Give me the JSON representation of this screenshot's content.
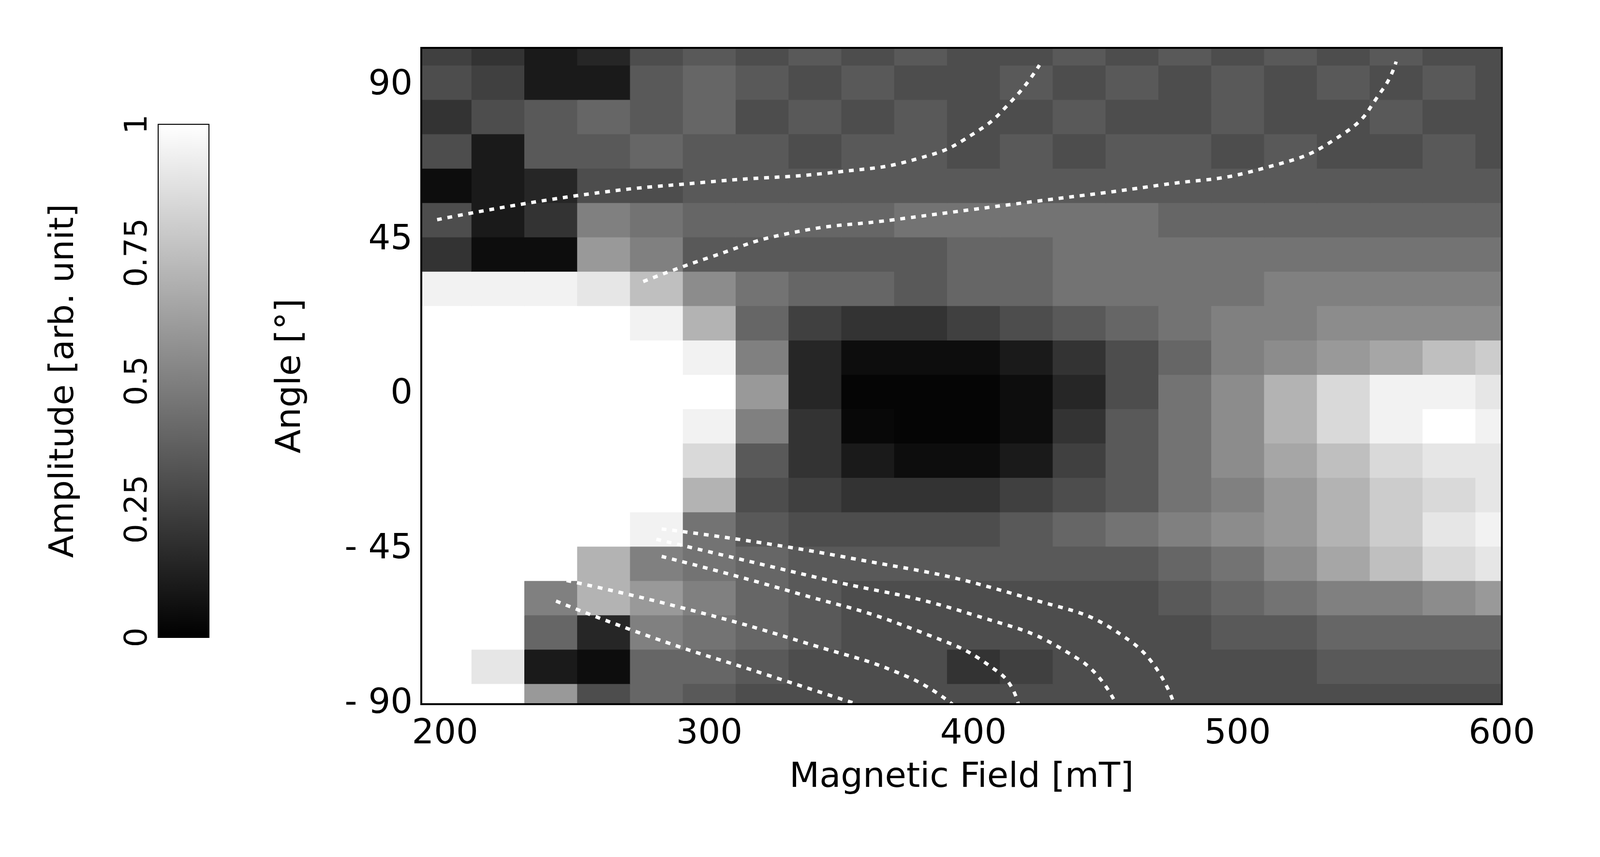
{
  "chart_data": {
    "type": "heatmap",
    "x_label": "Magnetic Field [mT]",
    "y_label": "Angle [°]",
    "xlim": [
      191,
      600
    ],
    "ylim": [
      -91,
      100
    ],
    "xticks": [
      200,
      300,
      400,
      500,
      600
    ],
    "yticks": [
      {
        "value": -90,
        "label": "- 90"
      },
      {
        "value": -45,
        "label": "- 45"
      },
      0,
      45,
      90
    ],
    "grid": false,
    "x": [
      200,
      220,
      240,
      260,
      280,
      300,
      320,
      340,
      360,
      380,
      400,
      420,
      440,
      460,
      480,
      500,
      520,
      540,
      560,
      580,
      600
    ],
    "y": [
      -90,
      -80,
      -70,
      -60,
      -50,
      -40,
      -30,
      -20,
      -10,
      0,
      10,
      20,
      30,
      40,
      50,
      60,
      70,
      80,
      90,
      100
    ],
    "cells": [
      [
        1,
        1,
        0.6,
        0.3,
        0.4,
        0.35,
        0.3,
        0.3,
        0.3,
        0.3,
        0.3,
        0.3,
        0.3,
        0.3,
        0.3,
        0.3,
        0.3,
        0.3,
        0.3,
        0.3,
        0.3
      ],
      [
        1,
        0.9,
        0.1,
        0.05,
        0.4,
        0.4,
        0.35,
        0.3,
        0.3,
        0.3,
        0.2,
        0.25,
        0.3,
        0.3,
        0.3,
        0.3,
        0.3,
        0.35,
        0.35,
        0.35,
        0.35
      ],
      [
        1,
        1,
        0.4,
        0.15,
        0.5,
        0.45,
        0.4,
        0.35,
        0.3,
        0.3,
        0.3,
        0.3,
        0.3,
        0.3,
        0.3,
        0.35,
        0.35,
        0.4,
        0.4,
        0.4,
        0.4
      ],
      [
        1,
        1,
        0.5,
        0.7,
        0.6,
        0.5,
        0.4,
        0.35,
        0.3,
        0.3,
        0.3,
        0.3,
        0.3,
        0.3,
        0.35,
        0.4,
        0.45,
        0.5,
        0.5,
        0.55,
        0.6
      ],
      [
        1,
        1,
        1,
        0.7,
        0.5,
        0.45,
        0.4,
        0.35,
        0.35,
        0.35,
        0.35,
        0.35,
        0.35,
        0.35,
        0.4,
        0.45,
        0.55,
        0.65,
        0.75,
        0.85,
        0.9
      ],
      [
        1,
        1,
        1,
        1,
        0.95,
        0.45,
        0.35,
        0.3,
        0.3,
        0.3,
        0.3,
        0.35,
        0.4,
        0.45,
        0.5,
        0.55,
        0.6,
        0.7,
        0.8,
        0.9,
        0.95
      ],
      [
        1,
        1,
        1,
        1,
        1,
        0.7,
        0.3,
        0.25,
        0.2,
        0.2,
        0.2,
        0.25,
        0.3,
        0.35,
        0.45,
        0.5,
        0.6,
        0.7,
        0.8,
        0.85,
        0.9
      ],
      [
        1,
        1,
        1,
        1,
        1,
        0.85,
        0.35,
        0.2,
        0.1,
        0.05,
        0.05,
        0.1,
        0.25,
        0.35,
        0.45,
        0.55,
        0.65,
        0.75,
        0.85,
        0.9,
        0.9
      ],
      [
        1,
        1,
        1,
        1,
        1,
        0.95,
        0.5,
        0.2,
        0.03,
        0.02,
        0.02,
        0.05,
        0.2,
        0.35,
        0.45,
        0.55,
        0.7,
        0.85,
        0.95,
        1,
        0.95
      ],
      [
        1,
        1,
        1,
        1,
        1,
        1,
        0.6,
        0.15,
        0.02,
        0.02,
        0.02,
        0.05,
        0.15,
        0.3,
        0.45,
        0.55,
        0.7,
        0.85,
        0.95,
        0.95,
        0.9
      ],
      [
        1,
        1,
        1,
        1,
        1,
        0.95,
        0.5,
        0.15,
        0.05,
        0.05,
        0.05,
        0.1,
        0.2,
        0.3,
        0.4,
        0.5,
        0.55,
        0.6,
        0.65,
        0.75,
        0.8
      ],
      [
        1,
        1,
        1,
        1,
        0.95,
        0.7,
        0.4,
        0.25,
        0.2,
        0.2,
        0.25,
        0.3,
        0.35,
        0.4,
        0.45,
        0.5,
        0.5,
        0.55,
        0.55,
        0.55,
        0.55
      ],
      [
        0.95,
        0.95,
        0.95,
        0.9,
        0.75,
        0.55,
        0.45,
        0.4,
        0.4,
        0.35,
        0.4,
        0.4,
        0.45,
        0.45,
        0.45,
        0.45,
        0.5,
        0.5,
        0.5,
        0.5,
        0.5
      ],
      [
        0.2,
        0.05,
        0.05,
        0.6,
        0.5,
        0.35,
        0.35,
        0.35,
        0.35,
        0.35,
        0.4,
        0.4,
        0.45,
        0.45,
        0.45,
        0.45,
        0.45,
        0.45,
        0.45,
        0.45,
        0.45
      ],
      [
        0.3,
        0.1,
        0.2,
        0.5,
        0.45,
        0.4,
        0.4,
        0.4,
        0.4,
        0.45,
        0.45,
        0.45,
        0.45,
        0.45,
        0.4,
        0.4,
        0.4,
        0.4,
        0.4,
        0.4,
        0.4
      ],
      [
        0.05,
        0.1,
        0.15,
        0.3,
        0.3,
        0.35,
        0.35,
        0.35,
        0.35,
        0.35,
        0.35,
        0.35,
        0.35,
        0.35,
        0.35,
        0.35,
        0.35,
        0.35,
        0.35,
        0.35,
        0.35
      ],
      [
        0.3,
        0.1,
        0.35,
        0.35,
        0.4,
        0.35,
        0.35,
        0.3,
        0.35,
        0.35,
        0.3,
        0.35,
        0.3,
        0.35,
        0.35,
        0.3,
        0.35,
        0.3,
        0.3,
        0.35,
        0.3
      ],
      [
        0.2,
        0.3,
        0.35,
        0.4,
        0.35,
        0.4,
        0.3,
        0.35,
        0.3,
        0.35,
        0.3,
        0.3,
        0.35,
        0.3,
        0.3,
        0.35,
        0.3,
        0.3,
        0.35,
        0.3,
        0.3
      ],
      [
        0.3,
        0.25,
        0.1,
        0.1,
        0.35,
        0.4,
        0.35,
        0.3,
        0.35,
        0.3,
        0.3,
        0.35,
        0.3,
        0.35,
        0.3,
        0.35,
        0.3,
        0.35,
        0.3,
        0.35,
        0.3
      ],
      [
        0.25,
        0.2,
        0.1,
        0.15,
        0.3,
        0.35,
        0.3,
        0.35,
        0.3,
        0.35,
        0.3,
        0.3,
        0.35,
        0.3,
        0.35,
        0.3,
        0.35,
        0.3,
        0.35,
        0.3,
        0.3
      ]
    ],
    "colorbar": {
      "label": "Amplitude [arb. unit]",
      "range": [
        0,
        1
      ],
      "ticks": [
        0,
        0.25,
        0.5,
        0.75,
        1
      ],
      "colors": [
        "#000000",
        "#ffffff"
      ]
    },
    "curves": [
      {
        "color": "#ffffff",
        "line_style": "dotted",
        "x": [
          197,
          250,
          300,
          350,
          380,
          400,
          415,
          425
        ],
        "y": [
          50,
          57,
          61,
          64,
          68,
          75,
          85,
          95
        ]
      },
      {
        "color": "#ffffff",
        "line_style": "dotted",
        "x": [
          275,
          300,
          330,
          370,
          420,
          470,
          510,
          540,
          555,
          560
        ],
        "y": [
          32,
          39,
          46,
          50,
          55,
          60,
          65,
          75,
          88,
          96
        ]
      },
      {
        "color": "#ffffff",
        "line_style": "dotted",
        "x": [
          242,
          280,
          320,
          356
        ],
        "y": [
          -61,
          -72,
          -82,
          -91
        ]
      },
      {
        "color": "#ffffff",
        "line_style": "dotted",
        "x": [
          246,
          290,
          340,
          375,
          392
        ],
        "y": [
          -55,
          -63,
          -74,
          -83,
          -91
        ]
      },
      {
        "color": "#ffffff",
        "line_style": "dotted",
        "x": [
          282,
          330,
          380,
          410,
          417
        ],
        "y": [
          -48,
          -58,
          -70,
          -82,
          -91
        ]
      },
      {
        "color": "#ffffff",
        "line_style": "dotted",
        "x": [
          280,
          340,
          400,
          440,
          454
        ],
        "y": [
          -43,
          -54,
          -65,
          -78,
          -91
        ]
      },
      {
        "color": "#ffffff",
        "line_style": "dotted",
        "x": [
          282,
          350,
          420,
          460,
          476
        ],
        "y": [
          -40,
          -48,
          -60,
          -73,
          -91
        ]
      }
    ]
  }
}
